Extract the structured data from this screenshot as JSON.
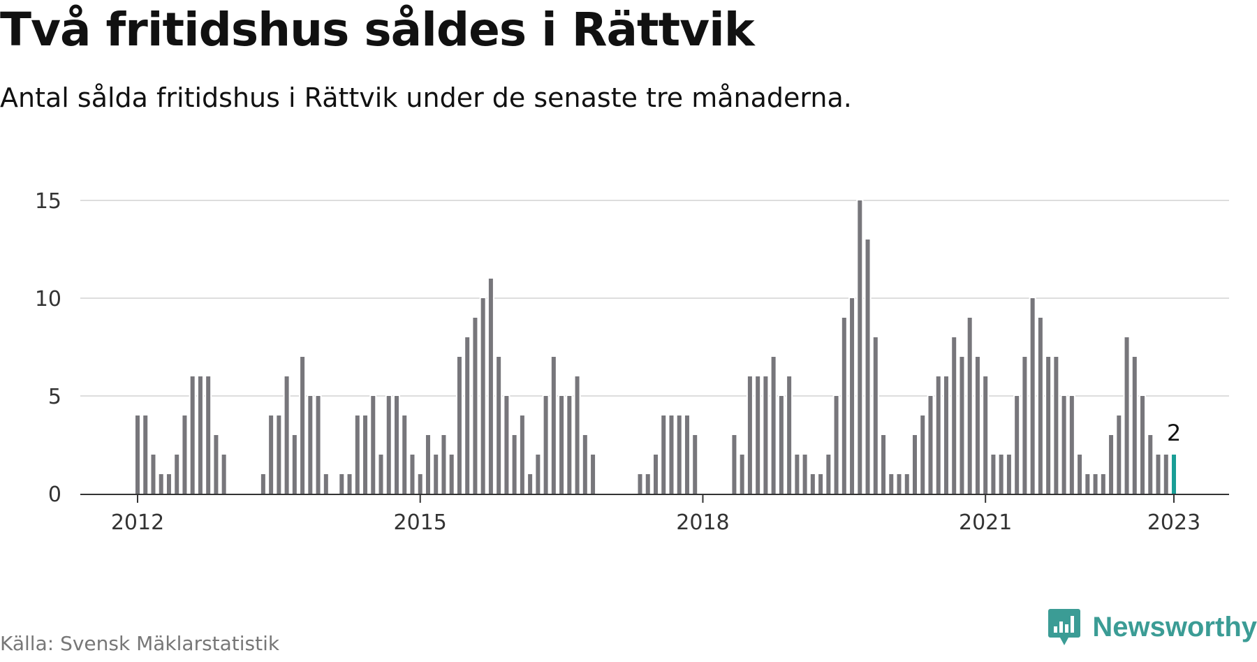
{
  "header": {
    "title": "Två fritidshus såldes i Rättvik",
    "subtitle": "Antal sålda fritidshus i Rättvik under de senaste tre månaderna."
  },
  "footer": {
    "source": "Källa: Svensk Mäklarstatistik",
    "brand": "Newsworthy",
    "brand_icon": "newsworthy-bar-chart-logo-icon"
  },
  "colors": {
    "bar": "#77767b",
    "highlight": "#1a9e96",
    "grid": "#dddddd",
    "axis": "#333333",
    "brand": "#3b9c95"
  },
  "chart_data": {
    "type": "bar",
    "ylim": [
      0,
      15
    ],
    "yticks": [
      0,
      5,
      10,
      15
    ],
    "xticks": [
      "2012",
      "2015",
      "2018",
      "2021",
      "2023"
    ],
    "grid": true,
    "x": [
      "2012-01",
      "2012-02",
      "2012-03",
      "2012-04",
      "2012-05",
      "2012-06",
      "2012-07",
      "2012-08",
      "2012-09",
      "2012-10",
      "2012-11",
      "2012-12",
      "2013-01",
      "2013-02",
      "2013-03",
      "2013-04",
      "2013-05",
      "2013-06",
      "2013-07",
      "2013-08",
      "2013-09",
      "2013-10",
      "2013-11",
      "2013-12",
      "2014-01",
      "2014-02",
      "2014-03",
      "2014-04",
      "2014-05",
      "2014-06",
      "2014-07",
      "2014-08",
      "2014-09",
      "2014-10",
      "2014-11",
      "2014-12",
      "2015-01",
      "2015-02",
      "2015-03",
      "2015-04",
      "2015-05",
      "2015-06",
      "2015-07",
      "2015-08",
      "2015-09",
      "2015-10",
      "2015-11",
      "2015-12",
      "2016-01",
      "2016-02",
      "2016-03",
      "2016-04",
      "2016-05",
      "2016-06",
      "2016-07",
      "2016-08",
      "2016-09",
      "2016-10",
      "2016-11",
      "2016-12",
      "2017-01",
      "2017-02",
      "2017-03",
      "2017-04",
      "2017-05",
      "2017-06",
      "2017-07",
      "2017-08",
      "2017-09",
      "2017-10",
      "2017-11",
      "2017-12",
      "2018-01",
      "2018-02",
      "2018-03",
      "2018-04",
      "2018-05",
      "2018-06",
      "2018-07",
      "2018-08",
      "2018-09",
      "2018-10",
      "2018-11",
      "2018-12",
      "2019-01",
      "2019-02",
      "2019-03",
      "2019-04",
      "2019-05",
      "2019-06",
      "2019-07",
      "2019-08",
      "2019-09",
      "2019-10",
      "2019-11",
      "2019-12",
      "2020-01",
      "2020-02",
      "2020-03",
      "2020-04",
      "2020-05",
      "2020-06",
      "2020-07",
      "2020-08",
      "2020-09",
      "2020-10",
      "2020-11",
      "2020-12",
      "2021-01",
      "2021-02",
      "2021-03",
      "2021-04",
      "2021-05",
      "2021-06",
      "2021-07",
      "2021-08",
      "2021-09",
      "2021-10",
      "2021-11",
      "2021-12",
      "2022-01",
      "2022-02",
      "2022-03",
      "2022-04",
      "2022-05",
      "2022-06",
      "2022-07",
      "2022-08",
      "2022-09",
      "2022-10",
      "2022-11",
      "2022-12",
      "2023-01"
    ],
    "values": [
      4,
      4,
      2,
      1,
      1,
      2,
      4,
      6,
      6,
      6,
      3,
      2,
      null,
      null,
      null,
      null,
      1,
      4,
      4,
      6,
      3,
      7,
      5,
      5,
      1,
      null,
      1,
      1,
      4,
      4,
      5,
      2,
      5,
      5,
      4,
      2,
      1,
      3,
      2,
      3,
      2,
      7,
      8,
      9,
      10,
      11,
      7,
      5,
      3,
      4,
      1,
      2,
      5,
      7,
      5,
      5,
      6,
      3,
      2,
      null,
      null,
      null,
      null,
      null,
      1,
      1,
      2,
      4,
      4,
      4,
      4,
      3,
      null,
      null,
      null,
      null,
      3,
      2,
      6,
      6,
      6,
      7,
      5,
      6,
      2,
      2,
      1,
      1,
      2,
      5,
      9,
      10,
      15,
      13,
      8,
      3,
      1,
      1,
      1,
      3,
      4,
      5,
      6,
      6,
      8,
      7,
      9,
      7,
      6,
      2,
      2,
      2,
      5,
      7,
      10,
      9,
      7,
      7,
      5,
      5,
      2,
      1,
      1,
      1,
      3,
      4,
      8,
      7,
      5,
      3,
      2,
      2,
      2
    ],
    "highlight_index": 132,
    "annotations": [
      {
        "x": "2023-01",
        "text": "2"
      }
    ]
  }
}
